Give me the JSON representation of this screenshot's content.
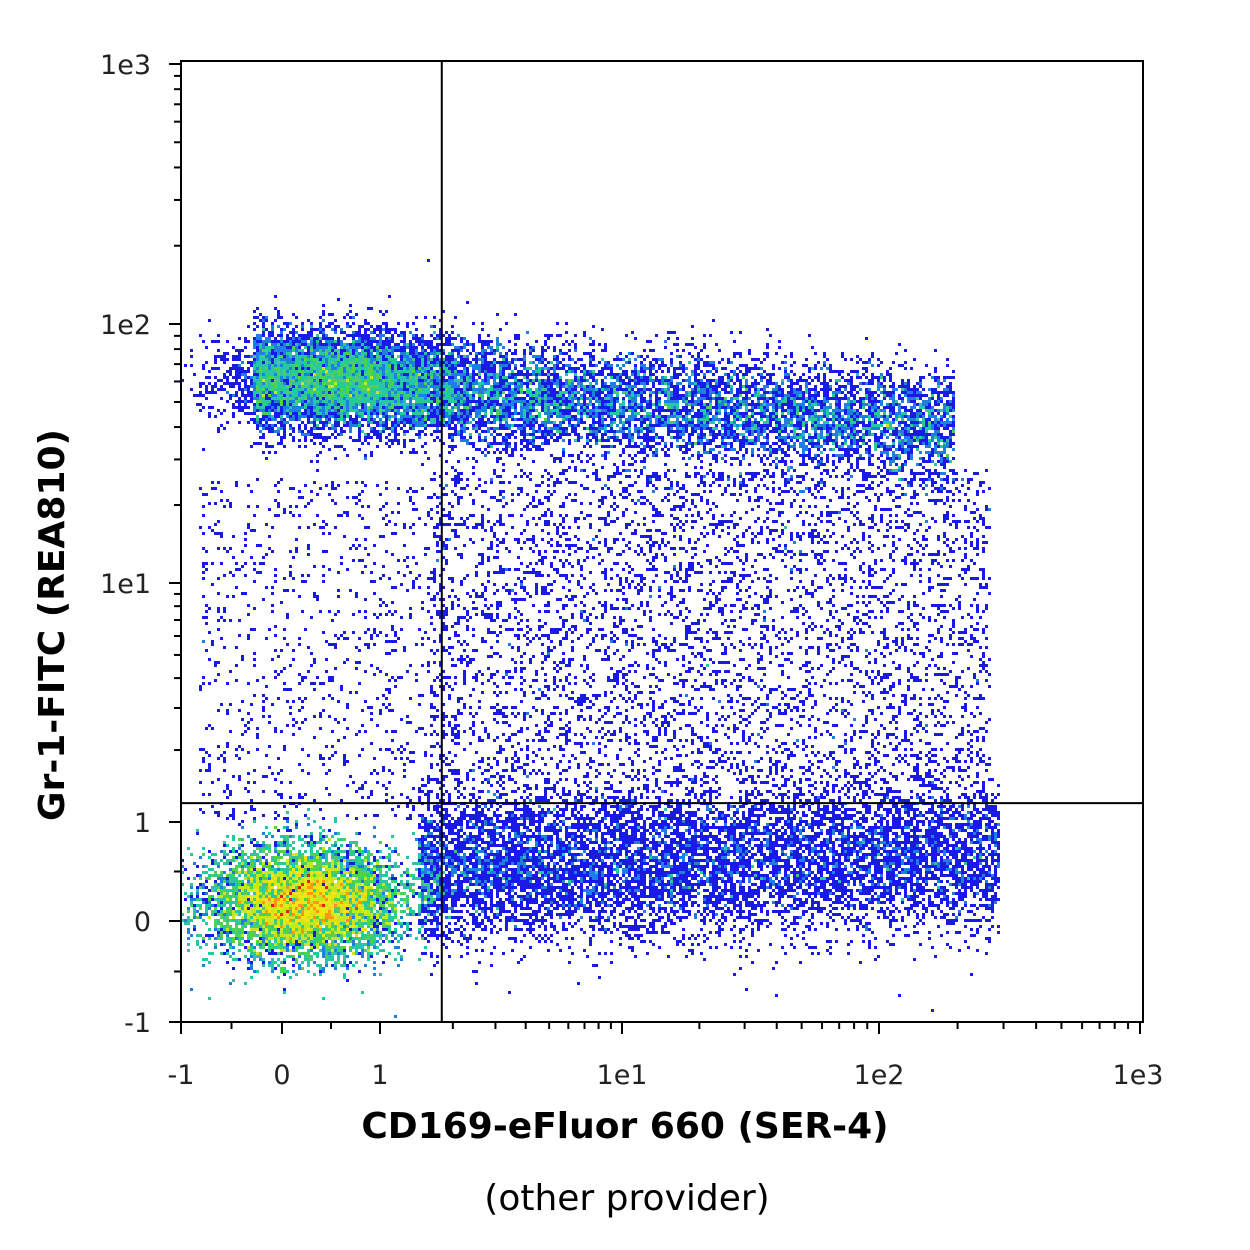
{
  "chart_data": {
    "type": "scatter",
    "subtype": "flow-cytometry-density-dot-plot",
    "title": "",
    "xlabel": "CD169-eFluor 660 (SER-4)",
    "xlabel_sub": "(other provider)",
    "ylabel": "Gr-1-FITC (REA810)",
    "x_scale": "biexponential",
    "y_scale": "biexponential",
    "xlim": [
      -1,
      1000
    ],
    "ylim": [
      -1,
      1000
    ],
    "x_ticks": [
      {
        "value": -1,
        "label": "-1"
      },
      {
        "value": 0,
        "label": "0"
      },
      {
        "value": 1,
        "label": "1"
      },
      {
        "value": 10,
        "label": "1e1"
      },
      {
        "value": 100,
        "label": "1e2"
      },
      {
        "value": 1000,
        "label": "1e3"
      }
    ],
    "y_ticks": [
      {
        "value": -1,
        "label": "-1"
      },
      {
        "value": 0,
        "label": "0"
      },
      {
        "value": 1,
        "label": "1"
      },
      {
        "value": 10,
        "label": "1e1"
      },
      {
        "value": 100,
        "label": "1e2"
      },
      {
        "value": 1000,
        "label": "1e3"
      }
    ],
    "quadrant_gates": {
      "x": 1.8,
      "y": 1.2
    },
    "density_colors": [
      "#1a1ae6",
      "#1f7fe0",
      "#27c8a0",
      "#4fd24f",
      "#c8e61e",
      "#f0e614",
      "#ff9614",
      "#e61e1e"
    ],
    "populations": [
      {
        "name": "",
        "x_center": 0.3,
        "y_center": 0.2,
        "x_spread": 0.55,
        "y_spread": 0.35,
        "peak_density": "high"
      },
      {
        "name": "",
        "x_range": [
          -0.5,
          120
        ],
        "y_center": 55,
        "peak_density": "medium"
      },
      {
        "name": "",
        "x_range": [
          2,
          300
        ],
        "y_center": 0.5,
        "peak_density": "low"
      },
      {
        "name": "",
        "x_range": [
          1,
          300
        ],
        "y_range": [
          1.2,
          30
        ],
        "peak_density": "sparse"
      }
    ],
    "grid": false,
    "legend": "none"
  }
}
